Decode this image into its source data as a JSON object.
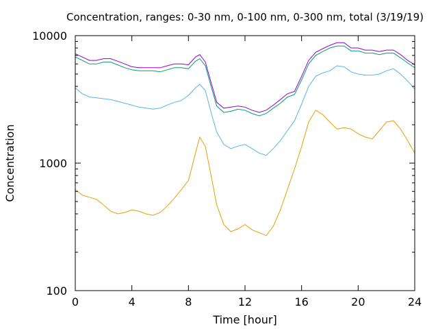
{
  "chart_data": {
    "type": "line",
    "title": "Concentration, ranges: 0-30 nm, 0-100 nm, 0-300 nm, total (3/19/19)",
    "xlabel": "Time [hour]",
    "ylabel": "Concentration",
    "xlim": [
      0,
      24
    ],
    "ylim": [
      100,
      10000
    ],
    "yscale": "log",
    "grid": false,
    "legend": "none",
    "x_ticks": [
      "0",
      "4",
      "8",
      "12",
      "16",
      "20",
      "24"
    ],
    "y_ticks": [
      "100",
      "1000",
      "10000"
    ],
    "series": [
      {
        "color": "#e69f00",
        "x": [
          0,
          0.5,
          1,
          1.5,
          2,
          2.5,
          3,
          3.5,
          4,
          4.5,
          5,
          5.5,
          6,
          6.5,
          7,
          7.5,
          8,
          8.5,
          8.8,
          9.2,
          9.6,
          10,
          10.5,
          11,
          11.5,
          12,
          12.5,
          13,
          13.5,
          14,
          14.5,
          15,
          15.5,
          16,
          16.5,
          17,
          17.5,
          18,
          18.5,
          19,
          19.5,
          20,
          20.5,
          21,
          21.5,
          22,
          22.5,
          23,
          23.5,
          24
        ],
        "y": [
          620,
          560,
          540,
          520,
          470,
          420,
          400,
          410,
          430,
          420,
          400,
          390,
          410,
          460,
          530,
          620,
          730,
          1200,
          1600,
          1350,
          800,
          470,
          330,
          290,
          305,
          330,
          300,
          285,
          270,
          320,
          430,
          620,
          900,
          1350,
          2100,
          2600,
          2400,
          2100,
          1850,
          1900,
          1850,
          1700,
          1600,
          1550,
          1800,
          2100,
          2150,
          1850,
          1500,
          1200
        ]
      },
      {
        "color": "#56b4e9",
        "x": [
          0,
          0.5,
          1,
          1.5,
          2,
          2.5,
          3,
          3.5,
          4,
          4.5,
          5,
          5.5,
          6,
          6.5,
          7,
          7.5,
          8,
          8.5,
          8.8,
          9.2,
          9.6,
          10,
          10.5,
          11,
          11.5,
          12,
          12.5,
          13,
          13.5,
          14,
          14.5,
          15,
          15.5,
          16,
          16.5,
          17,
          17.5,
          18,
          18.5,
          19,
          19.5,
          20,
          20.5,
          21,
          21.5,
          22,
          22.5,
          23,
          23.5,
          24
        ],
        "y": [
          3900,
          3500,
          3300,
          3250,
          3200,
          3150,
          3050,
          2950,
          2850,
          2750,
          2700,
          2650,
          2700,
          2850,
          3000,
          3100,
          3400,
          3900,
          4150,
          3700,
          2500,
          1750,
          1400,
          1300,
          1360,
          1400,
          1300,
          1200,
          1150,
          1300,
          1500,
          1800,
          2150,
          2900,
          4000,
          4800,
          5100,
          5300,
          5800,
          5700,
          5200,
          5000,
          4900,
          4900,
          5000,
          5300,
          5500,
          5000,
          4400,
          3800
        ]
      },
      {
        "color": "#009e73",
        "x": [
          0,
          0.5,
          1,
          1.5,
          2,
          2.5,
          3,
          3.5,
          4,
          4.5,
          5,
          5.5,
          6,
          6.5,
          7,
          7.5,
          8,
          8.5,
          8.8,
          9.2,
          9.6,
          10,
          10.5,
          11,
          11.5,
          12,
          12.5,
          13,
          13.5,
          14,
          14.5,
          15,
          15.5,
          16,
          16.5,
          17,
          17.5,
          18,
          18.5,
          19,
          19.5,
          20,
          20.5,
          21,
          21.5,
          22,
          22.5,
          23,
          23.5,
          24
        ],
        "y": [
          6800,
          6400,
          6000,
          6000,
          6200,
          6200,
          5900,
          5600,
          5400,
          5300,
          5300,
          5300,
          5200,
          5400,
          5600,
          5600,
          5500,
          6300,
          6600,
          5800,
          4000,
          2800,
          2500,
          2550,
          2650,
          2600,
          2450,
          2350,
          2450,
          2700,
          2950,
          3300,
          3450,
          4500,
          6000,
          7000,
          7500,
          8000,
          8300,
          8300,
          7600,
          7600,
          7300,
          7300,
          7100,
          7300,
          7300,
          6700,
          6100,
          5600
        ]
      },
      {
        "color": "#9400d3",
        "x": [
          0,
          0.5,
          1,
          1.5,
          2,
          2.5,
          3,
          3.5,
          4,
          4.5,
          5,
          5.5,
          6,
          6.5,
          7,
          7.5,
          8,
          8.5,
          8.8,
          9.2,
          9.6,
          10,
          10.5,
          11,
          11.5,
          12,
          12.5,
          13,
          13.5,
          14,
          14.5,
          15,
          15.5,
          16,
          16.5,
          17,
          17.5,
          18,
          18.5,
          19,
          19.5,
          20,
          20.5,
          21,
          21.5,
          22,
          22.5,
          23,
          23.5,
          24
        ],
        "y": [
          7200,
          6800,
          6400,
          6400,
          6600,
          6600,
          6300,
          6000,
          5700,
          5600,
          5600,
          5600,
          5600,
          5800,
          6000,
          6000,
          5900,
          6800,
          7100,
          6200,
          4300,
          3000,
          2700,
          2750,
          2800,
          2750,
          2600,
          2500,
          2600,
          2850,
          3150,
          3500,
          3650,
          4800,
          6400,
          7400,
          7900,
          8400,
          8800,
          8800,
          8000,
          8000,
          7700,
          7700,
          7500,
          7700,
          7700,
          7100,
          6400,
          5900
        ]
      }
    ]
  }
}
